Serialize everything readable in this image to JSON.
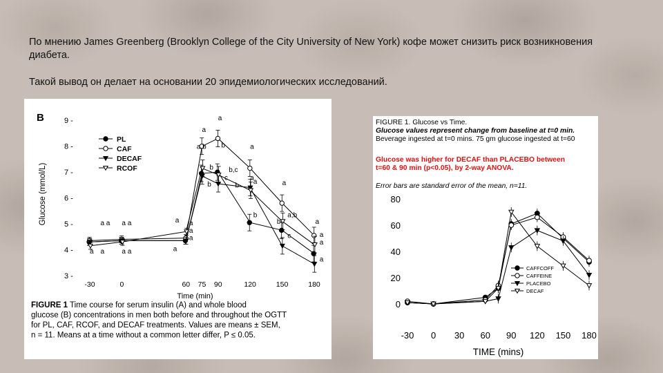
{
  "intro": {
    "paragraph1": "По мнению James Greenberg (Brooklyn College of the City University of New York) кофе может снизить риск возникновения диабета.",
    "paragraph2": "Такой вывод он делает на основании 20 эпидемиологических исследований."
  },
  "chart_data": [
    {
      "type": "line",
      "panel_label": "B",
      "xlabel": "Time (min)",
      "ylabel": "Glucose (mmol/L)",
      "x": [
        -30,
        0,
        60,
        75,
        90,
        120,
        150,
        180
      ],
      "x_tick_labels": [
        "-30",
        "0",
        "60",
        "75",
        "90",
        "120",
        "150",
        "180"
      ],
      "y_ticks": [
        3,
        4,
        5,
        6,
        7,
        8,
        9
      ],
      "ylim": [
        3,
        9.3
      ],
      "legend_position": "top-left",
      "series": [
        {
          "name": "PL",
          "marker": "filled-circle",
          "values": [
            4.3,
            4.35,
            4.35,
            6.95,
            7.0,
            5.05,
            4.75,
            3.85
          ]
        },
        {
          "name": "CAF",
          "marker": "open-circle",
          "values": [
            4.35,
            4.4,
            4.45,
            8.0,
            8.3,
            7.15,
            5.8,
            4.55
          ]
        },
        {
          "name": "DECAF",
          "marker": "filled-triangle",
          "values": [
            4.3,
            4.35,
            4.35,
            6.85,
            6.55,
            6.4,
            4.15,
            3.45
          ]
        },
        {
          "name": "RCOF",
          "marker": "open-triangle",
          "values": [
            4.15,
            4.3,
            4.7,
            7.15,
            6.9,
            6.3,
            5.1,
            4.2
          ]
        }
      ],
      "annotations": [
        {
          "text": "a a",
          "x": -20,
          "y": 4.95
        },
        {
          "text": "a a",
          "x": 0,
          "y": 4.95
        },
        {
          "text": "a",
          "x": 50,
          "y": 5.05
        },
        {
          "text": "a",
          "x": 63,
          "y": 4.95
        },
        {
          "text": "a",
          "x": 63,
          "y": 4.65
        },
        {
          "text": "a",
          "x": 63,
          "y": 4.38
        },
        {
          "text": "a",
          "x": 48,
          "y": 3.95
        },
        {
          "text": "a",
          "x": -30,
          "y": 3.85
        },
        {
          "text": "a",
          "x": -20,
          "y": 3.85
        },
        {
          "text": "a a",
          "x": 0,
          "y": 3.85
        },
        {
          "text": "a",
          "x": 75,
          "y": 8.55
        },
        {
          "text": "a,b",
          "x": 70,
          "y": 7.9
        },
        {
          "text": "a",
          "x": 90,
          "y": 9.0
        },
        {
          "text": "b",
          "x": 93,
          "y": 7.95
        },
        {
          "text": "b",
          "x": 82,
          "y": 7.1
        },
        {
          "text": "b,c",
          "x": 100,
          "y": 7.0
        },
        {
          "text": "c",
          "x": 96,
          "y": 6.7
        },
        {
          "text": "b",
          "x": 80,
          "y": 6.45
        },
        {
          "text": "a",
          "x": 120,
          "y": 7.9
        },
        {
          "text": "a",
          "x": 120,
          "y": 6.7
        },
        {
          "text": "a",
          "x": 123,
          "y": 6.55
        },
        {
          "text": "b",
          "x": 106,
          "y": 6.4
        },
        {
          "text": "a",
          "x": 150,
          "y": 6.5
        },
        {
          "text": "b",
          "x": 123,
          "y": 5.25
        },
        {
          "text": "a,b",
          "x": 155,
          "y": 5.25
        },
        {
          "text": "b",
          "x": 145,
          "y": 5.0
        },
        {
          "text": "c",
          "x": 155,
          "y": 4.45
        },
        {
          "text": "a",
          "x": 181,
          "y": 5.0
        },
        {
          "text": "a",
          "x": 185,
          "y": 4.5
        },
        {
          "text": "a",
          "x": 185,
          "y": 4.2
        },
        {
          "text": "a",
          "x": 185,
          "y": 3.55
        }
      ],
      "caption": [
        {
          "bold": "FIGURE 1",
          "text": "   Time course for serum insulin (A) and whole blood"
        },
        {
          "bold": "",
          "text": "glucose (B) concentrations in men both before and throughout the OGTT"
        },
        {
          "bold": "",
          "text": "for PL, CAF, RCOF, and DECAF treatments. Values are means ± SEM,"
        },
        {
          "bold": "",
          "text": "n = 11. Means at a time without a common letter differ, P ≤ 0.05."
        }
      ]
    },
    {
      "type": "line",
      "title": "FIGURE 1. Glucose vs Time.",
      "subtitle_lines": [
        "Glucose values represent change from baseline at t=0 min.",
        "Beverage ingested at t=0 mins. 75 gm glucose ingested at t=60"
      ],
      "highlight_lines": [
        "Glucose was higher for DECAF than PLACEBO between",
        "t=60 & 90 min (p<0.05), by 2-way ANOVA."
      ],
      "highlight_color": "#e01010",
      "note": "Error bars are standard error of the mean, n=11.",
      "xlabel": "TIME (mins)",
      "x": [
        -30,
        0,
        60,
        75,
        90,
        120,
        150,
        180
      ],
      "x_tick_labels": [
        "-30",
        "0",
        "30",
        "60",
        "90",
        "120",
        "150",
        "180"
      ],
      "xlim": [
        -30,
        180
      ],
      "y_ticks": [
        0,
        20,
        40,
        60,
        80
      ],
      "ylim": [
        0,
        80
      ],
      "legend_position": "bottom-right",
      "series": [
        {
          "name": "CAFFCOFF",
          "marker": "filled-circle",
          "values": [
            1,
            0,
            5,
            12,
            61,
            69,
            50,
            32
          ]
        },
        {
          "name": "CAFFEINE",
          "marker": "open-circle",
          "values": [
            2,
            0,
            3,
            14,
            60,
            66,
            51,
            33
          ]
        },
        {
          "name": "PLACEBO",
          "marker": "filled-triangle",
          "values": [
            1,
            0,
            2,
            4,
            43,
            56,
            48,
            22
          ]
        },
        {
          "name": "DECAF",
          "marker": "open-triangle",
          "values": [
            1,
            0,
            2,
            12,
            70,
            44,
            29,
            14
          ]
        }
      ]
    }
  ]
}
